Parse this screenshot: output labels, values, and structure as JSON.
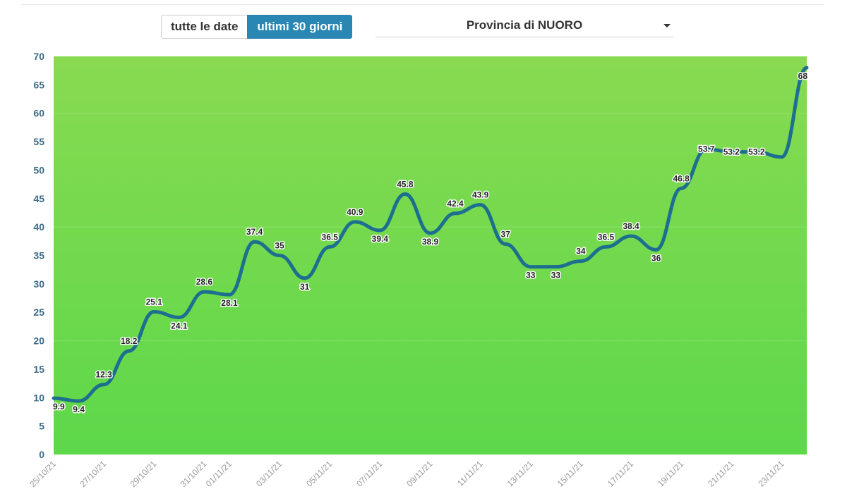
{
  "controls": {
    "range_all_label": "tutte le date",
    "range_30_label": "ultimi 30 giorni",
    "active_range": "ultimi 30 giorni",
    "province_selected": "Provincia di NUORO"
  },
  "colors": {
    "plot_background_top": "#88da51",
    "plot_background_bottom": "#5dd84a",
    "line": "#1d6f8f",
    "active_button": "#2a86b2",
    "y_tick_text": "#3c6a86",
    "x_tick_text": "#9a9a9a"
  },
  "chart_data": {
    "type": "line",
    "grid": false,
    "ylim": [
      0,
      70
    ],
    "yticks": [
      0,
      5,
      10,
      15,
      20,
      25,
      30,
      35,
      40,
      45,
      50,
      55,
      60,
      65,
      70
    ],
    "x_tick_labels": [
      "25/10/21",
      "27/10/21",
      "29/10/21",
      "31/10/21",
      "01/11/21",
      "03/11/21",
      "05/11/21",
      "07/11/21",
      "09/11/21",
      "11/11/21",
      "13/11/21",
      "15/11/21",
      "17/11/21",
      "19/11/21",
      "21/11/21",
      "23/11/21"
    ],
    "x_tick_positions": [
      0,
      2,
      4,
      6,
      7,
      9,
      11,
      13,
      15,
      17,
      19,
      21,
      23,
      25,
      27,
      29
    ],
    "series": [
      {
        "values": [
          9.9,
          9.4,
          12.3,
          18.2,
          25.1,
          24.1,
          28.6,
          28.1,
          37.4,
          35,
          31,
          36.5,
          40.9,
          39.4,
          45.8,
          38.9,
          42.4,
          43.9,
          37,
          33,
          33,
          34,
          36.5,
          38.4,
          36,
          46.8,
          53.7,
          53.2,
          53.2,
          52.3,
          68
        ],
        "data_labels": [
          "9.9",
          "9.4",
          "12.3",
          "18.2",
          "25.1",
          "24.1",
          "28.6",
          "28.1",
          "37.4",
          "35",
          "31",
          "36.5",
          "40.9",
          "39.4",
          "45.8",
          "38.9",
          "42.4",
          "43.9",
          "37",
          "33",
          "33",
          "34",
          "36.5",
          "38.4",
          "36",
          "46.8",
          "53.7",
          "53.2",
          "53.2",
          "",
          "68"
        ]
      }
    ]
  }
}
